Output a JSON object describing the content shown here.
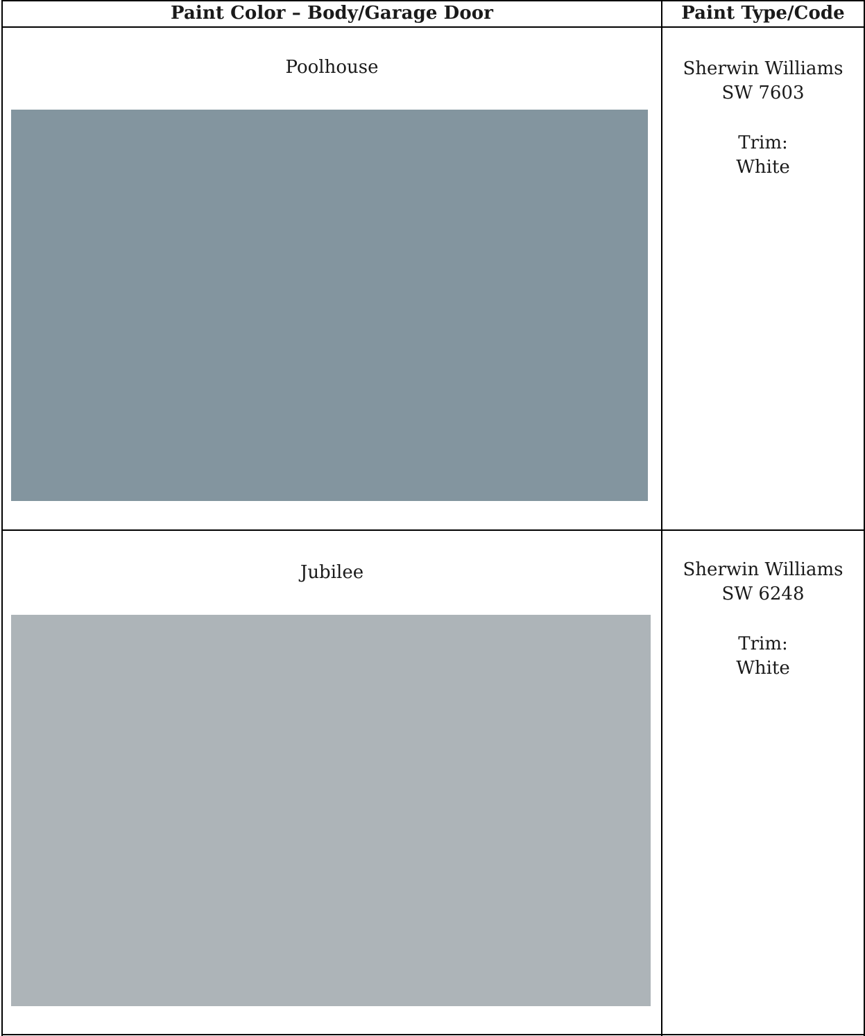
{
  "table": {
    "header": {
      "col1": "Paint Color – Body/Garage Door",
      "col2": "Paint Type/Code"
    },
    "rows": [
      {
        "name": "Poolhouse",
        "swatch_color": "#83959f",
        "brand": "Sherwin Williams",
        "code": "SW 7603",
        "trim_label": "Trim:",
        "trim_value": "White"
      },
      {
        "name": "Jubilee",
        "swatch_color": "#adb4b8",
        "brand": "Sherwin Williams",
        "code": "SW 6248",
        "trim_label": "Trim:",
        "trim_value": "White"
      }
    ]
  }
}
